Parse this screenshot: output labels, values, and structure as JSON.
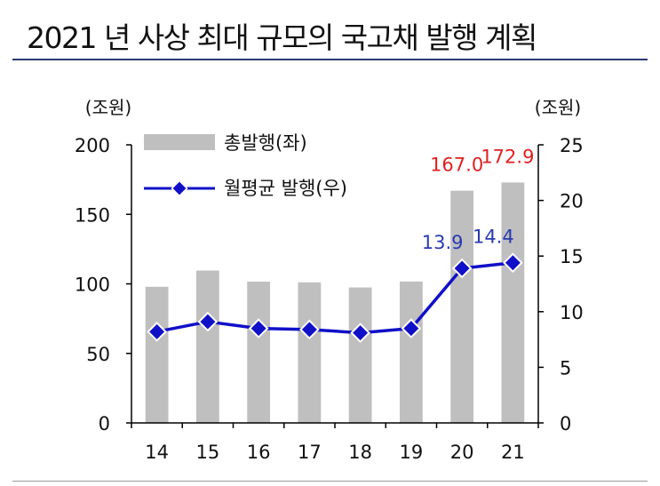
{
  "title": "2021 년 사상 최대 규모의 국고채 발행 계획",
  "chart_data": {
    "type": "bar",
    "categories": [
      "14",
      "15",
      "16",
      "17",
      "18",
      "19",
      "20",
      "21"
    ],
    "series": [
      {
        "name": "총발행(좌)",
        "type": "bar",
        "axis": "left",
        "values": [
          97.9,
          109.6,
          101.6,
          101.1,
          97.4,
          101.7,
          167.0,
          172.9
        ],
        "color": "#bfbfbf"
      },
      {
        "name": "월평균 발행(우)",
        "type": "line",
        "axis": "right",
        "values": [
          8.2,
          9.1,
          8.5,
          8.4,
          8.1,
          8.5,
          13.9,
          14.4
        ],
        "color": "#1010c8"
      }
    ],
    "y_left": {
      "unit": "(조원)",
      "range": [
        0,
        200
      ],
      "ticks": [
        "0",
        "50",
        "100",
        "150",
        "200"
      ]
    },
    "y_right": {
      "unit": "(조원)",
      "range": [
        0,
        25
      ],
      "ticks": [
        "0",
        "5",
        "10",
        "15",
        "20",
        "25"
      ]
    },
    "bar_labels": [
      {
        "index": 6,
        "text": "167.0",
        "color": "#e02020"
      },
      {
        "index": 7,
        "text": "172.9",
        "color": "#e02020"
      }
    ],
    "line_labels": [
      {
        "index": 6,
        "text": "13.9",
        "color": "#2a3ab0"
      },
      {
        "index": 7,
        "text": "14.4",
        "color": "#2a3ab0"
      }
    ],
    "legend_position": "top-left",
    "grid": false
  }
}
